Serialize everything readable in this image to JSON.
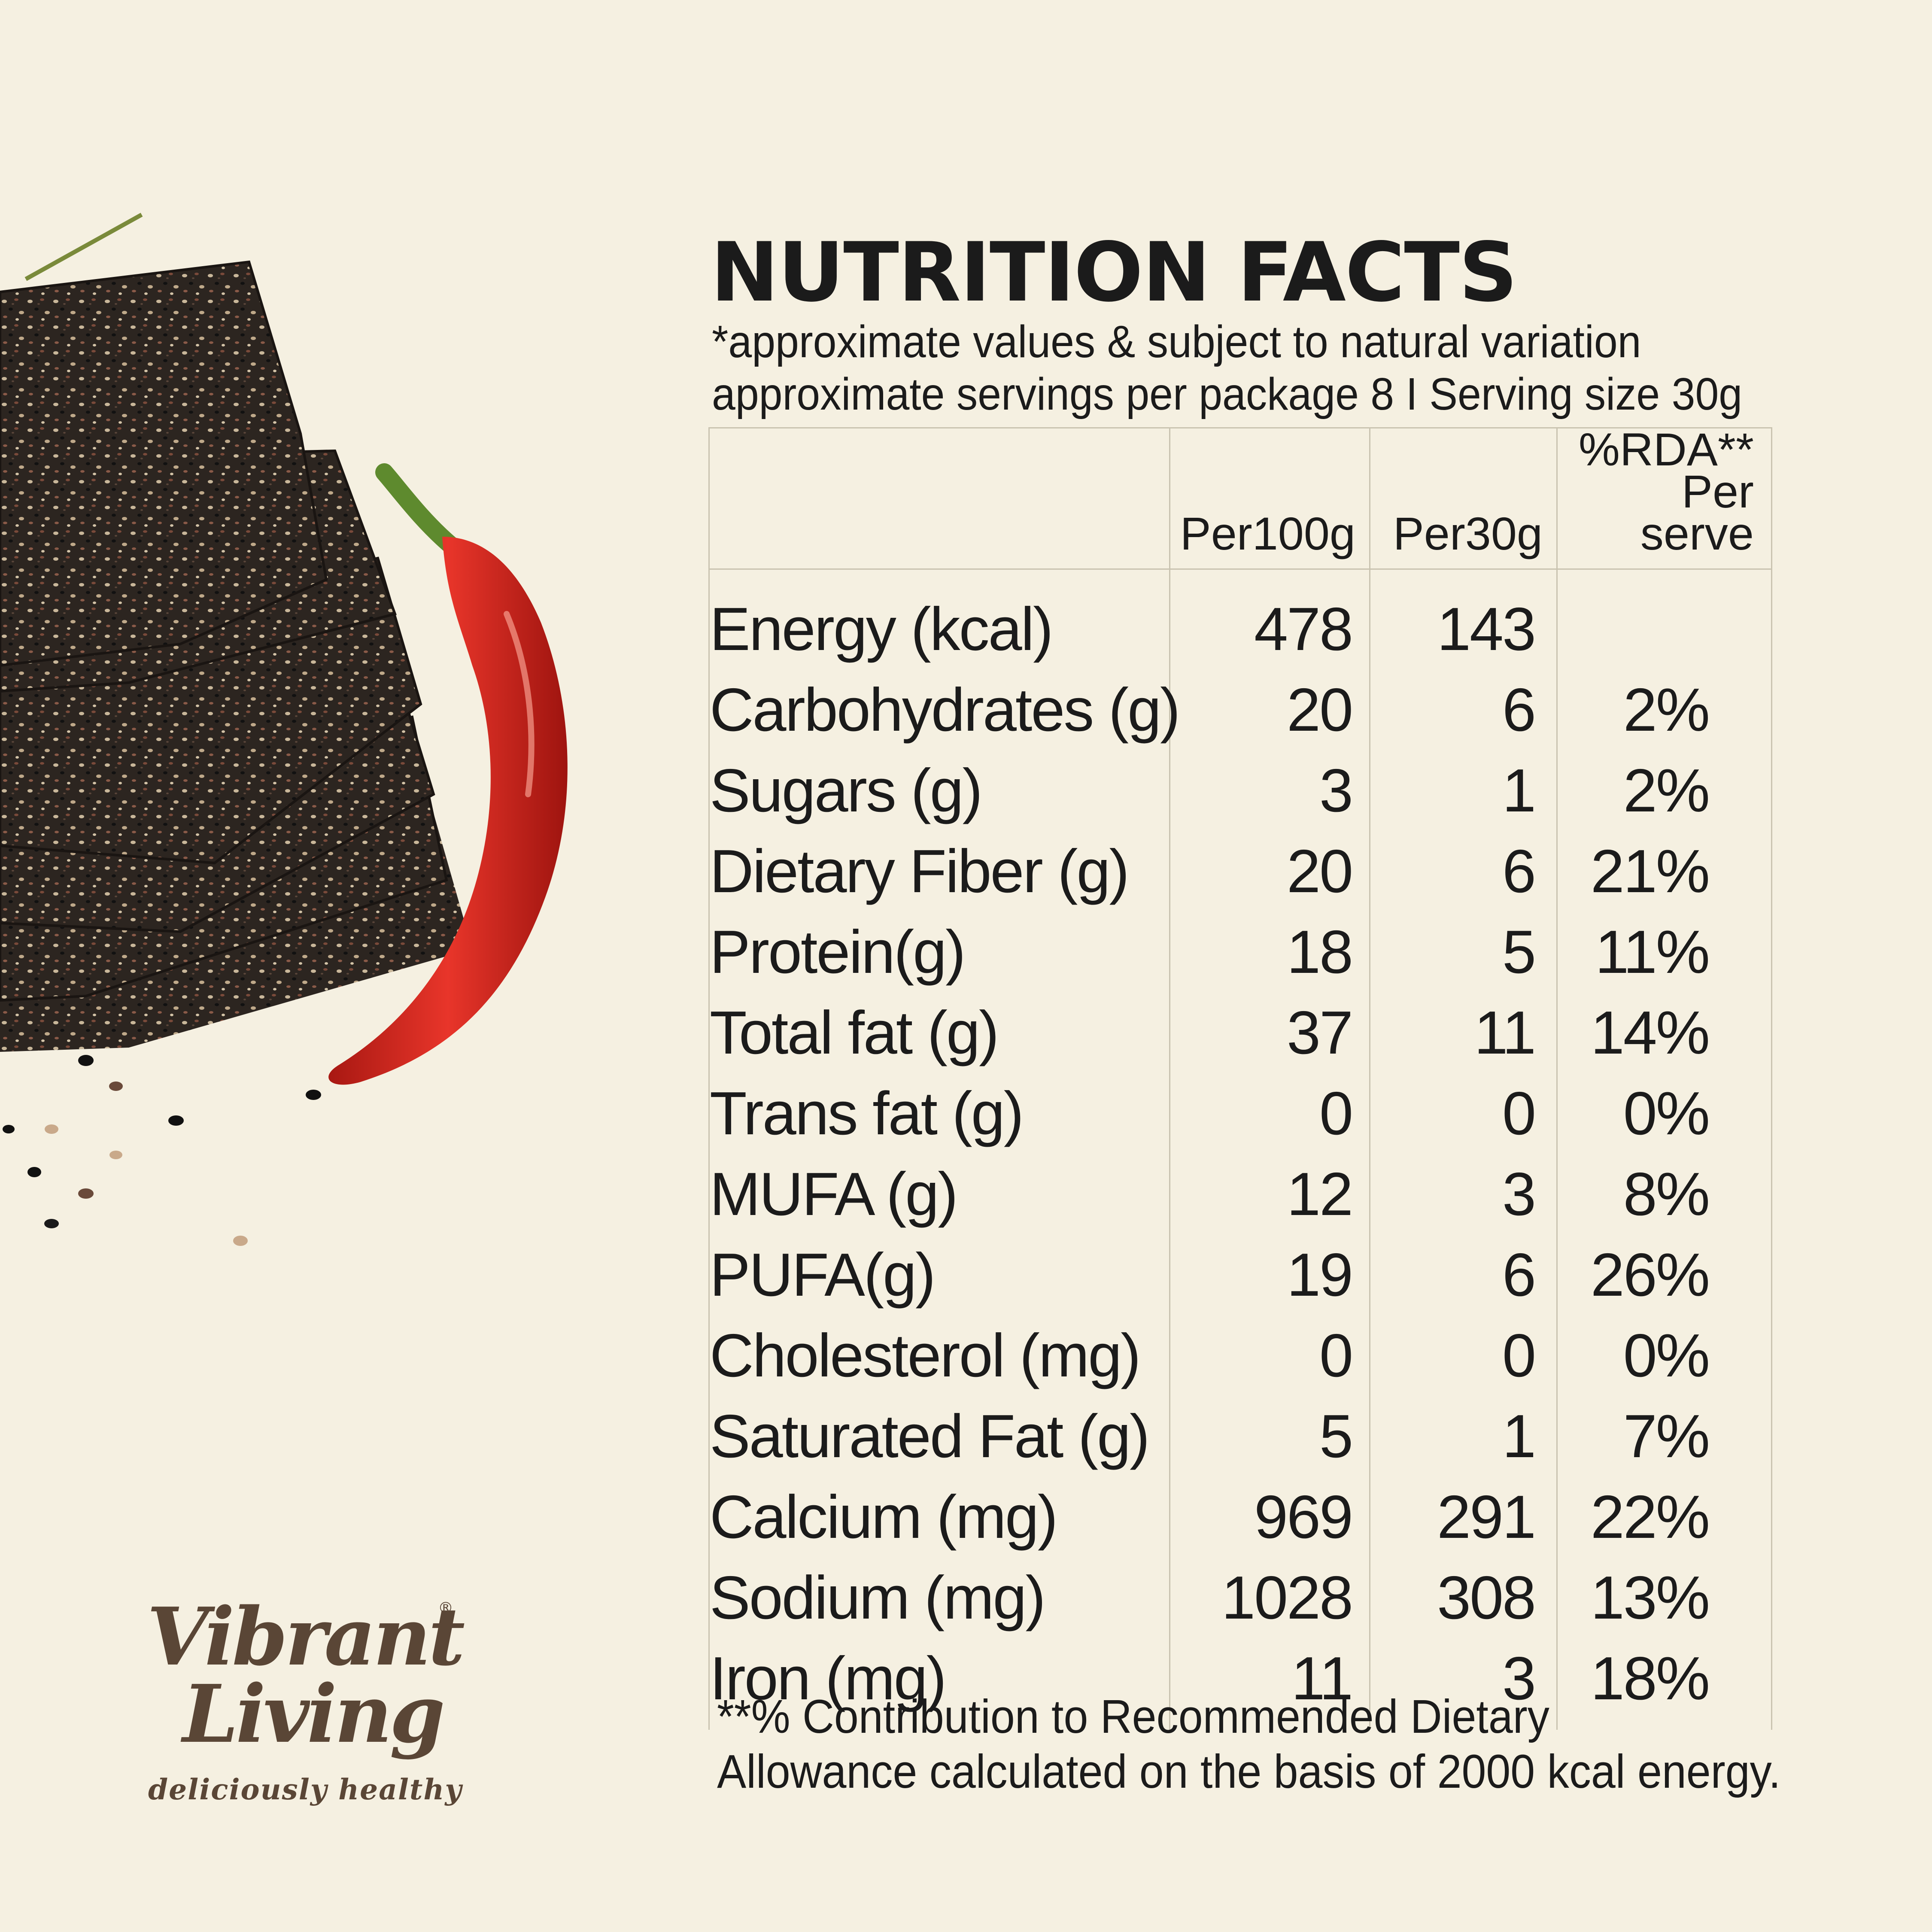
{
  "title": "NUTRITION FACTS",
  "subtitle": {
    "line1": "*approximate values & subject to natural variation",
    "line2": "approximate servings per package 8 I Serving size 30g"
  },
  "table": {
    "headers": {
      "nutrient": "",
      "per100g": "Per100g",
      "per30g": "Per30g",
      "rda_line1": "%RDA**",
      "rda_line2": "Per serve"
    },
    "rows": [
      {
        "nutrient": "Energy (kcal)",
        "per100g": "478",
        "per30g": "143",
        "rda": ""
      },
      {
        "nutrient": "Carbohydrates (g)",
        "per100g": "20",
        "per30g": "6",
        "rda": "2%"
      },
      {
        "nutrient": "Sugars (g)",
        "per100g": "3",
        "per30g": "1",
        "rda": "2%"
      },
      {
        "nutrient": "Dietary Fiber (g)",
        "per100g": "20",
        "per30g": "6",
        "rda": "21%"
      },
      {
        "nutrient": "Protein(g)",
        "per100g": "18",
        "per30g": "5",
        "rda": "11%"
      },
      {
        "nutrient": "Total fat (g)",
        "per100g": "37",
        "per30g": "11",
        "rda": "14%"
      },
      {
        "nutrient": "Trans fat (g)",
        "per100g": "0",
        "per30g": "0",
        "rda": "0%"
      },
      {
        "nutrient": "MUFA (g)",
        "per100g": "12",
        "per30g": "3",
        "rda": "8%"
      },
      {
        "nutrient": "PUFA(g)",
        "per100g": "19",
        "per30g": "6",
        "rda": "26%"
      },
      {
        "nutrient": "Cholesterol (mg)",
        "per100g": "0",
        "per30g": "0",
        "rda": "0%"
      },
      {
        "nutrient": "Saturated Fat (g)",
        "per100g": "5",
        "per30g": "1",
        "rda": "7%"
      },
      {
        "nutrient": "Calcium (mg)",
        "per100g": "969",
        "per30g": "291",
        "rda": "22%"
      },
      {
        "nutrient": "Sodium (mg)",
        "per100g": "1028",
        "per30g": "308",
        "rda": "13%"
      },
      {
        "nutrient": "Iron (mg)",
        "per100g": "11",
        "per30g": "3",
        "rda": "18%"
      }
    ]
  },
  "footnote": {
    "line1": "**% Contribution to Recommended Dietary",
    "line2": "Allowance calculated on the basis of 2000 kcal energy."
  },
  "brand": {
    "line1": "Vibrant",
    "line2": "Living",
    "registered": "®",
    "tagline": "deliciously healthy"
  },
  "colors": {
    "background": "#f5f0e1",
    "text": "#1b1b1b",
    "brand": "#5a4636",
    "table_border": "#c9c3b0",
    "chili_red": "#d8251d",
    "cracker": "#2c2520"
  },
  "illustration": {
    "subject": "stacked dark sesame crackers with a red chili pepper and scattered sesame seeds"
  }
}
